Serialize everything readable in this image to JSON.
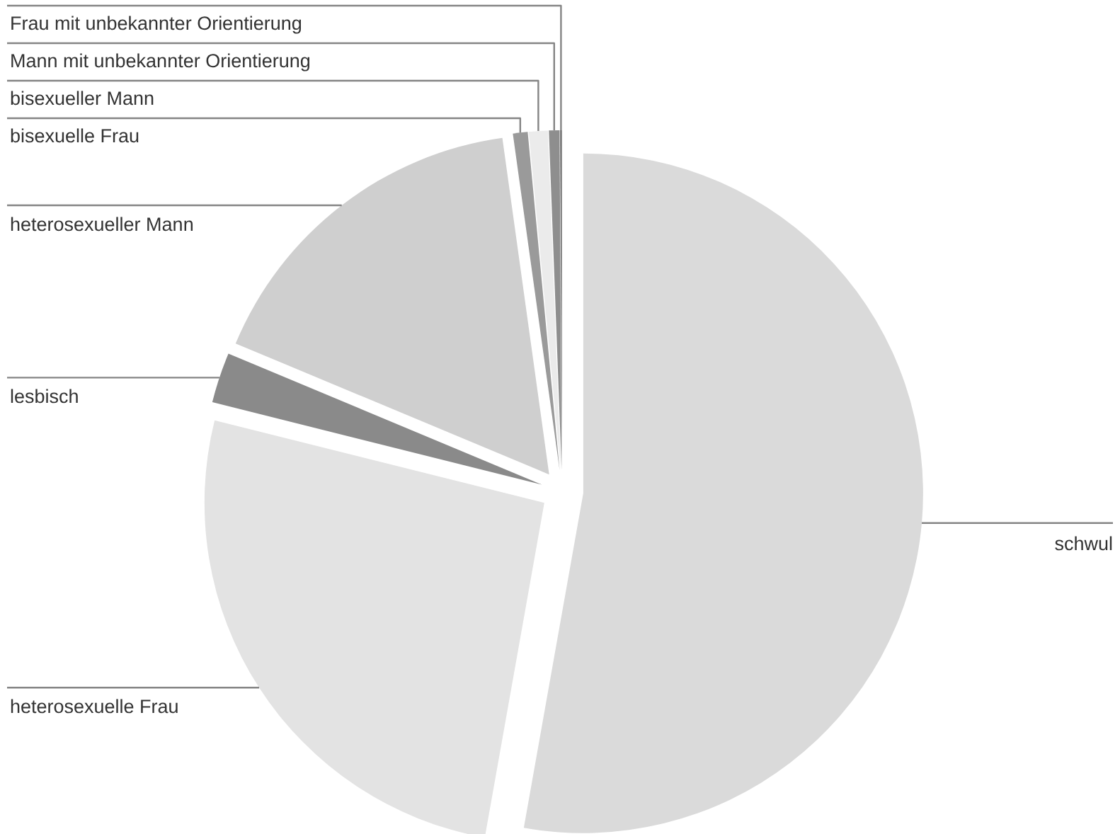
{
  "chart_data": {
    "type": "pie",
    "categories": [
      "schwul",
      "heterosexuelle Frau",
      "lesbisch",
      "heterosexueller Mann",
      "bisexuelle Frau",
      "bisexueller Mann",
      "Mann mit unbekannter Orientierung",
      "Frau mit unbekannter Orientierung"
    ],
    "values": [
      52.8,
      26.1,
      2.4,
      16.5,
      0.7,
      0.9,
      0.5,
      0.1
    ],
    "colors": [
      "#dadada",
      "#e3e3e3",
      "#8a8a8a",
      "#cfcfcf",
      "#9a9a9a",
      "#ebebeb",
      "#8e8e8e",
      "#808080"
    ]
  }
}
